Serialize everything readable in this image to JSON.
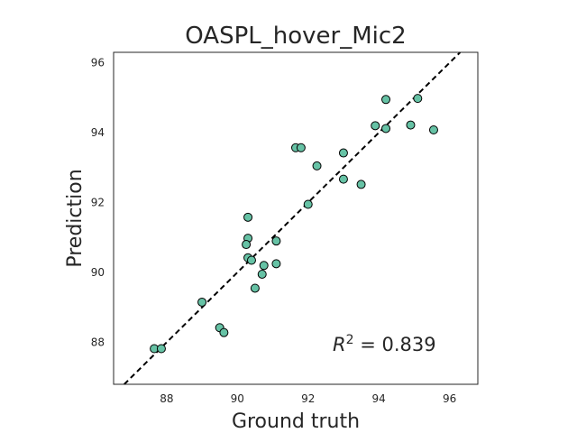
{
  "chart_data": {
    "type": "scatter",
    "title": "OASPL_hover_Mic2",
    "xlabel": "Ground truth",
    "ylabel": "Prediction",
    "xlim": [
      86.5,
      96.8
    ],
    "ylim": [
      86.8,
      96.3
    ],
    "xticks": [
      88,
      90,
      92,
      94,
      96
    ],
    "yticks": [
      88,
      90,
      92,
      94,
      96
    ],
    "grid": false,
    "marker_color": "#66c2a5",
    "marker_edge_color": "#000000",
    "reference_line": {
      "x": [
        86.8,
        96.3
      ],
      "y": [
        86.8,
        96.3
      ],
      "style": "dashed",
      "color": "#000000"
    },
    "annotation": {
      "var": "R",
      "exp": "2",
      "rest": " = 0.839"
    },
    "points": [
      {
        "x": 87.65,
        "y": 87.82
      },
      {
        "x": 87.85,
        "y": 87.82
      },
      {
        "x": 89.0,
        "y": 89.15
      },
      {
        "x": 89.5,
        "y": 88.42
      },
      {
        "x": 89.62,
        "y": 88.28
      },
      {
        "x": 90.3,
        "y": 91.58
      },
      {
        "x": 90.3,
        "y": 90.98
      },
      {
        "x": 90.25,
        "y": 90.8
      },
      {
        "x": 90.3,
        "y": 90.42
      },
      {
        "x": 90.4,
        "y": 90.35
      },
      {
        "x": 90.5,
        "y": 89.55
      },
      {
        "x": 90.7,
        "y": 89.95
      },
      {
        "x": 90.75,
        "y": 90.2
      },
      {
        "x": 91.1,
        "y": 90.9
      },
      {
        "x": 91.1,
        "y": 90.25
      },
      {
        "x": 91.65,
        "y": 93.57
      },
      {
        "x": 91.8,
        "y": 93.57
      },
      {
        "x": 92.0,
        "y": 91.95
      },
      {
        "x": 92.25,
        "y": 93.05
      },
      {
        "x": 93.0,
        "y": 93.42
      },
      {
        "x": 93.0,
        "y": 92.67
      },
      {
        "x": 93.5,
        "y": 92.52
      },
      {
        "x": 93.9,
        "y": 94.2
      },
      {
        "x": 94.2,
        "y": 94.12
      },
      {
        "x": 94.2,
        "y": 94.95
      },
      {
        "x": 94.9,
        "y": 94.22
      },
      {
        "x": 95.1,
        "y": 94.98
      },
      {
        "x": 95.55,
        "y": 94.08
      }
    ]
  }
}
